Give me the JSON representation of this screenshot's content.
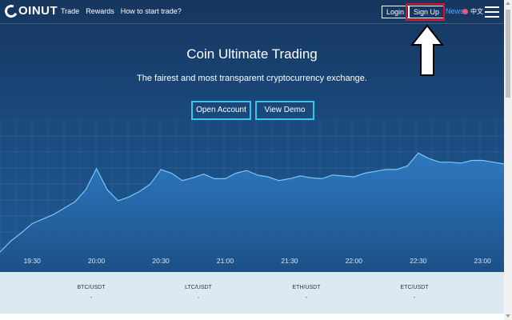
{
  "brand": {
    "name": "OINUT"
  },
  "nav": {
    "items": [
      "Trade",
      "Rewards",
      "How to start trade?"
    ]
  },
  "header": {
    "login": "Login",
    "signup": "Sign Up",
    "news": "News",
    "lang": "中文",
    "menu_icon": "hamburger-icon"
  },
  "hero": {
    "title": "Coin Ultimate Trading",
    "subtitle": "The fairest and most transparent cryptocurrency exchange.",
    "open_account": "Open Account",
    "view_demo": "View Demo"
  },
  "chart_data": {
    "type": "area",
    "x_ticks": [
      "19:30",
      "20:00",
      "20:30",
      "21:00",
      "21:30",
      "22:00",
      "22:30",
      "23:00"
    ],
    "x": [
      "19:15",
      "19:20",
      "19:25",
      "19:30",
      "19:35",
      "19:40",
      "19:45",
      "19:50",
      "19:55",
      "20:00",
      "20:05",
      "20:10",
      "20:15",
      "20:20",
      "20:25",
      "20:30",
      "20:35",
      "20:40",
      "20:45",
      "20:50",
      "20:55",
      "21:00",
      "21:05",
      "21:10",
      "21:15",
      "21:20",
      "21:25",
      "21:30",
      "21:35",
      "21:40",
      "21:45",
      "21:50",
      "21:55",
      "22:00",
      "22:05",
      "22:10",
      "22:15",
      "22:20",
      "22:25",
      "22:30",
      "22:35",
      "22:40",
      "22:45",
      "22:50",
      "22:55",
      "23:00",
      "23:05",
      "23:10"
    ],
    "values": [
      6,
      18,
      27,
      37,
      42,
      47,
      54,
      61,
      74,
      97,
      74,
      62,
      66,
      72,
      80,
      96,
      92,
      84,
      87,
      91,
      86,
      86,
      92,
      95,
      90,
      88,
      84,
      86,
      89,
      87,
      86,
      90,
      89,
      88,
      92,
      94,
      96,
      96,
      100,
      114,
      108,
      104,
      104,
      103,
      106,
      106,
      104,
      102
    ],
    "ylim": [
      0,
      150
    ],
    "fill_color": "#2f7bc4",
    "line_color": "#7cc6f4",
    "grid": true
  },
  "tickers": [
    {
      "pair": "BTC/USDT",
      "value": "-"
    },
    {
      "pair": "LTC/USDT",
      "value": "-"
    },
    {
      "pair": "ETH/USDT",
      "value": "-"
    },
    {
      "pair": "ETC/USDT",
      "value": "-"
    }
  ],
  "colors": {
    "highlight": "#e0102a",
    "accent": "#38c6e8",
    "news": "#4ea8ff"
  }
}
